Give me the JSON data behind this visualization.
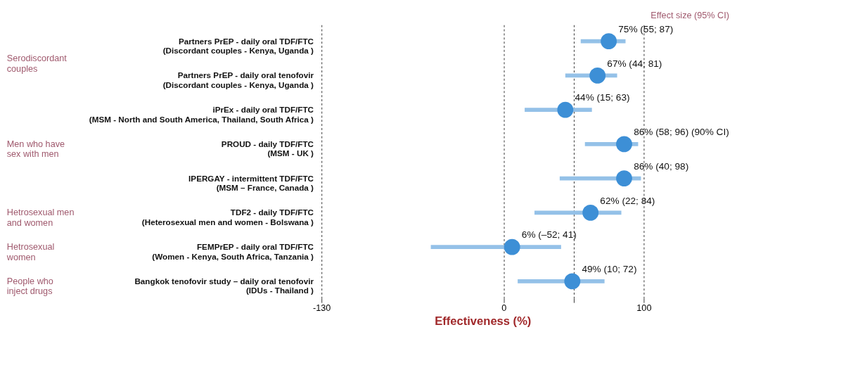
{
  "chart_data": {
    "type": "scatter",
    "orientation": "horizontal",
    "xlabel": "Effectiveness (%)",
    "categories": [
      "Partners PrEP - daily oral TDF/FTC\n(Discordant couples - Kenya, Uganda )",
      "Partners PrEP - daily oral  tenofovir\n(Discordant couples - Kenya, Uganda )",
      "iPrEx - daily oral TDF/FTC\n(MSM - North and South America, Thailand, South Africa )",
      "PROUD - daily TDF/FTC\n(MSM - UK )",
      "IPERGAY - intermittent TDF/FTC\n(MSM – France, Canada )",
      "TDF2 - daily TDF/FTC\n(Heterosexual men and women - Bolswana )",
      "FEMPrEP - daily oral TDF/FTC\n(Women - Kenya, South Africa, Tanzania )",
      "Bangkok tenofovir study – daily oral tenofovir\n(IDUs - Thailand )"
    ],
    "values": [
      75,
      67,
      44,
      86,
      86,
      62,
      6,
      49
    ],
    "errors": [
      [
        55,
        87
      ],
      [
        44,
        81
      ],
      [
        15,
        63
      ],
      [
        58,
        96
      ],
      [
        40,
        98
      ],
      [
        22,
        84
      ],
      [
        -52,
        41
      ],
      [
        10,
        72
      ]
    ],
    "value_labels": [
      "75% (55; 87)",
      "67% (44; 81)",
      "44% (15; 63)",
      "86% (58; 96) (90% CI)",
      "86% (40; 98)",
      "62% (22; 84)",
      "6% (–52; 41)",
      "49% (10; 72)"
    ],
    "color": "#3d8fd6",
    "marker": "circle",
    "xlim": [
      -130,
      100
    ],
    "xticks": [
      -130,
      0,
      {
        "value": 50,
        "label": null
      },
      100
    ],
    "grid": "x",
    "annotations": [
      "Effect size (95% CI)",
      "Serodiscordant\ncouples",
      "Men who have\nsex with men",
      "Hetrosexual men\nand women",
      "Hetrosexual\nwomen",
      "People who\ninject drugs"
    ]
  }
}
